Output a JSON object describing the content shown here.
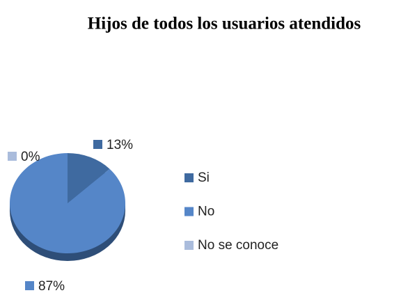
{
  "chart_data": {
    "type": "pie",
    "title": "Hijos de todos los usuarios atendidos",
    "categories": [
      "Si",
      "No",
      "No se conoce"
    ],
    "values": [
      13,
      87,
      0
    ],
    "value_labels": [
      "13%",
      "87%",
      "0%"
    ],
    "colors": [
      "#3f6aa0",
      "#5586c8",
      "#aabcdc"
    ],
    "legend": "right"
  }
}
